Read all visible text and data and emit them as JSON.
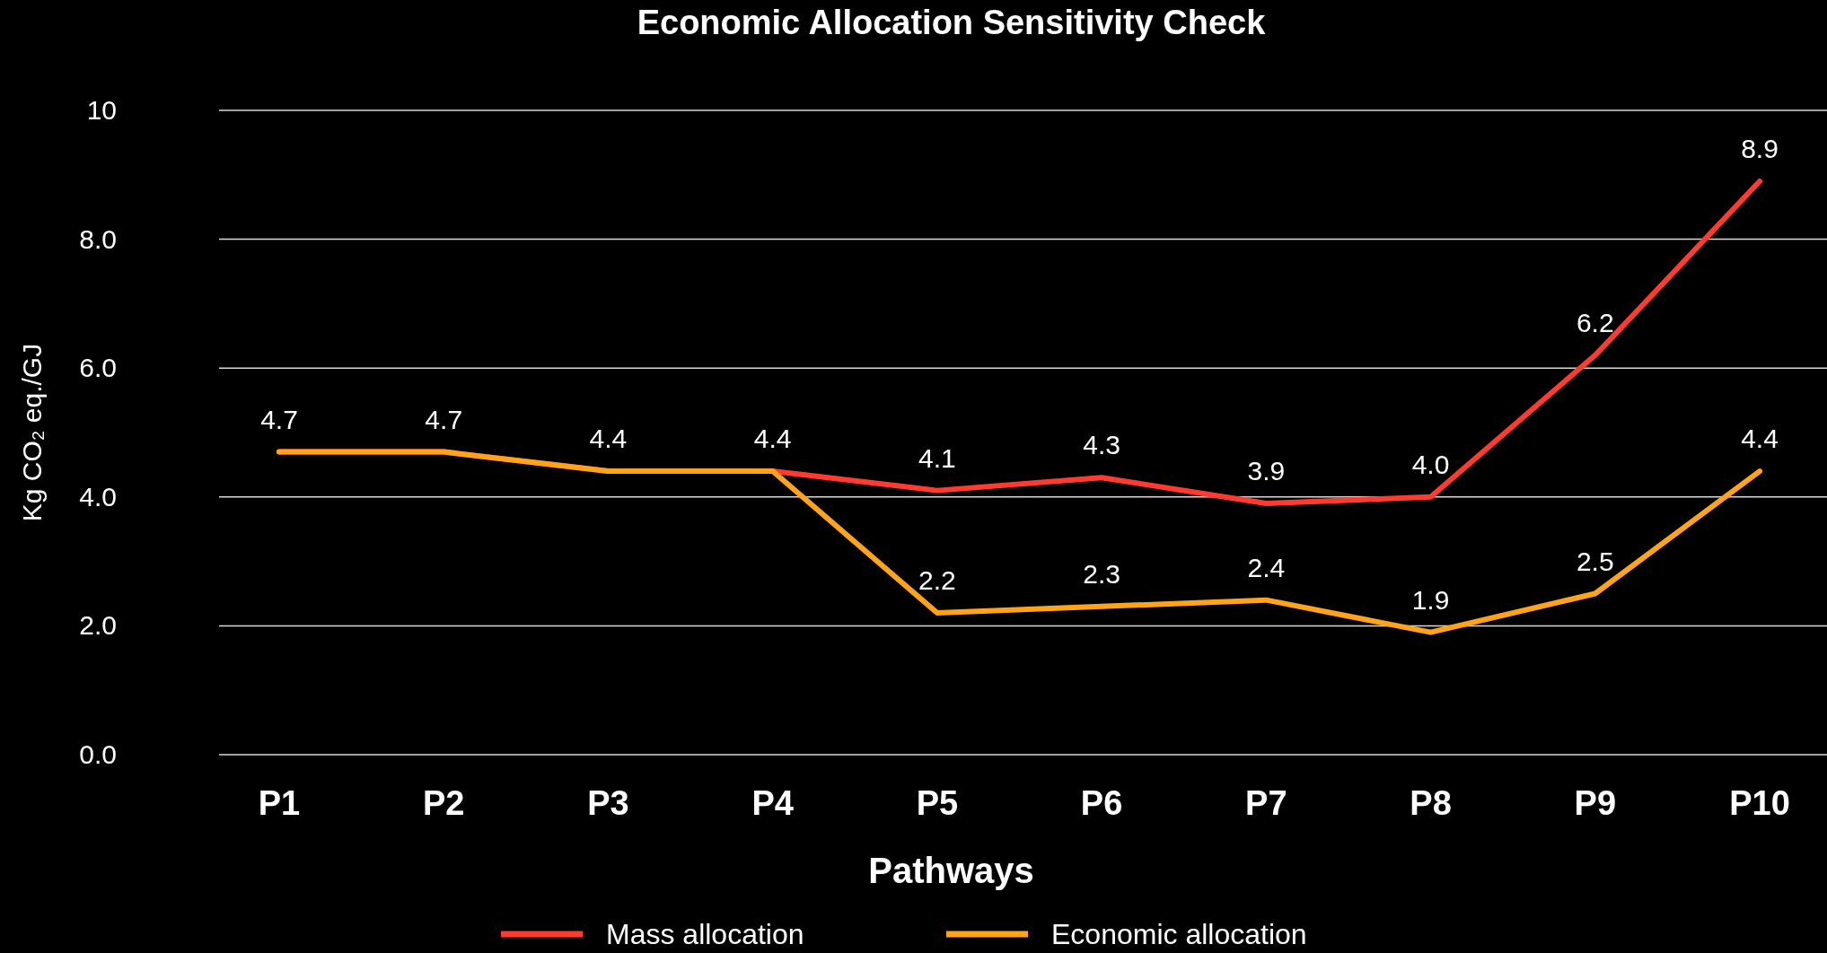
{
  "chart_data": {
    "type": "line",
    "title": "Economic Allocation Sensitivity Check",
    "xlabel": "Pathways",
    "ylabel": "Kg CO₂ eq./GJ",
    "categories": [
      "P1",
      "P2",
      "P3",
      "P4",
      "P5",
      "P6",
      "P7",
      "P8",
      "P9",
      "P10"
    ],
    "series": [
      {
        "name": "Mass allocation",
        "color": "#ff3b30",
        "values": [
          4.7,
          4.7,
          4.4,
          4.4,
          4.1,
          4.3,
          3.9,
          4.0,
          6.2,
          8.9
        ],
        "value_labels": [
          "4.7",
          "4.7",
          "4.4",
          "4.4",
          "4.1",
          "4.3",
          "3.9",
          "4.0",
          "6.2",
          "8.9"
        ]
      },
      {
        "name": "Economic allocation",
        "color": "#ffa31a",
        "values": [
          4.7,
          4.7,
          4.4,
          4.4,
          2.2,
          2.3,
          2.4,
          1.9,
          2.5,
          4.4
        ],
        "value_labels": [
          null,
          null,
          null,
          null,
          "2.2",
          "2.3",
          "2.4",
          "1.9",
          "2.5",
          "4.4"
        ]
      }
    ],
    "ylim": [
      0,
      10
    ],
    "yticks": [
      {
        "value": 0,
        "label": "0.0"
      },
      {
        "value": 2,
        "label": "2.0"
      },
      {
        "value": 4,
        "label": "4.0"
      },
      {
        "value": 6,
        "label": "6.0"
      },
      {
        "value": 8,
        "label": "8.0"
      },
      10
    ],
    "grid": "y",
    "legend": "bottom",
    "marker": "none",
    "line_style": "solid"
  }
}
